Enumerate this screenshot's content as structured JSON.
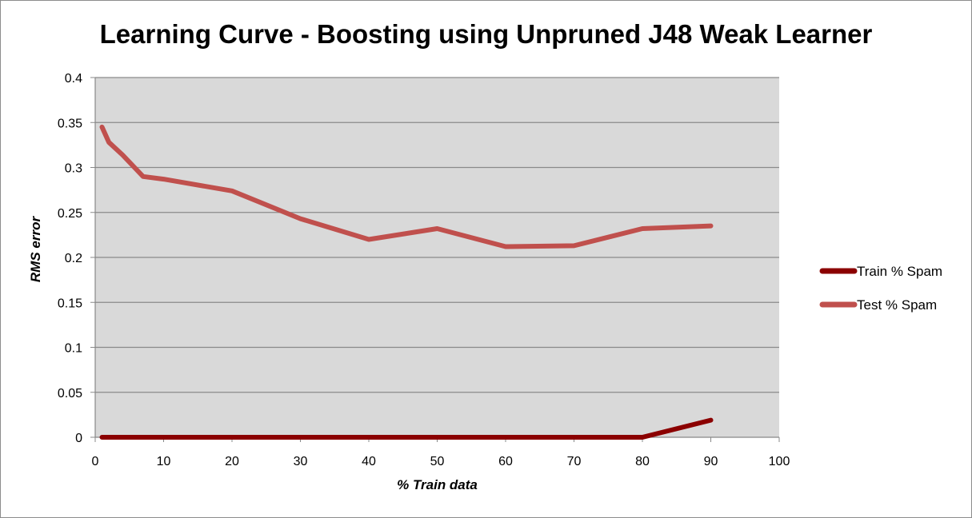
{
  "chart_data": {
    "type": "line",
    "title": "Learning Curve - Boosting using Unpruned J48 Weak Learner",
    "xlabel": "% Train data",
    "ylabel": "RMS error",
    "xlim": [
      0,
      100
    ],
    "ylim": [
      0,
      0.4
    ],
    "xticks": [
      0,
      10,
      20,
      30,
      40,
      50,
      60,
      70,
      80,
      90,
      100
    ],
    "yticks": [
      0,
      0.05,
      0.1,
      0.15,
      0.2,
      0.25,
      0.3,
      0.35,
      0.4
    ],
    "grid": true,
    "plot_background": "#d9d9d9",
    "legend_position": "right",
    "series": [
      {
        "name": "Train % Spam",
        "color": "#8b0000",
        "x": [
          1,
          2,
          4,
          7,
          10,
          20,
          30,
          40,
          50,
          60,
          70,
          80,
          90
        ],
        "y": [
          0,
          0,
          0,
          0,
          0,
          0,
          0,
          0,
          0,
          0,
          0,
          0,
          0.019
        ]
      },
      {
        "name": "Test % Spam",
        "color": "#c0504d",
        "x": [
          1,
          2,
          4,
          7,
          10,
          20,
          30,
          40,
          50,
          60,
          70,
          80,
          90
        ],
        "y": [
          0.345,
          0.328,
          0.314,
          0.29,
          0.287,
          0.274,
          0.243,
          0.22,
          0.232,
          0.212,
          0.213,
          0.232,
          0.235
        ]
      }
    ]
  }
}
